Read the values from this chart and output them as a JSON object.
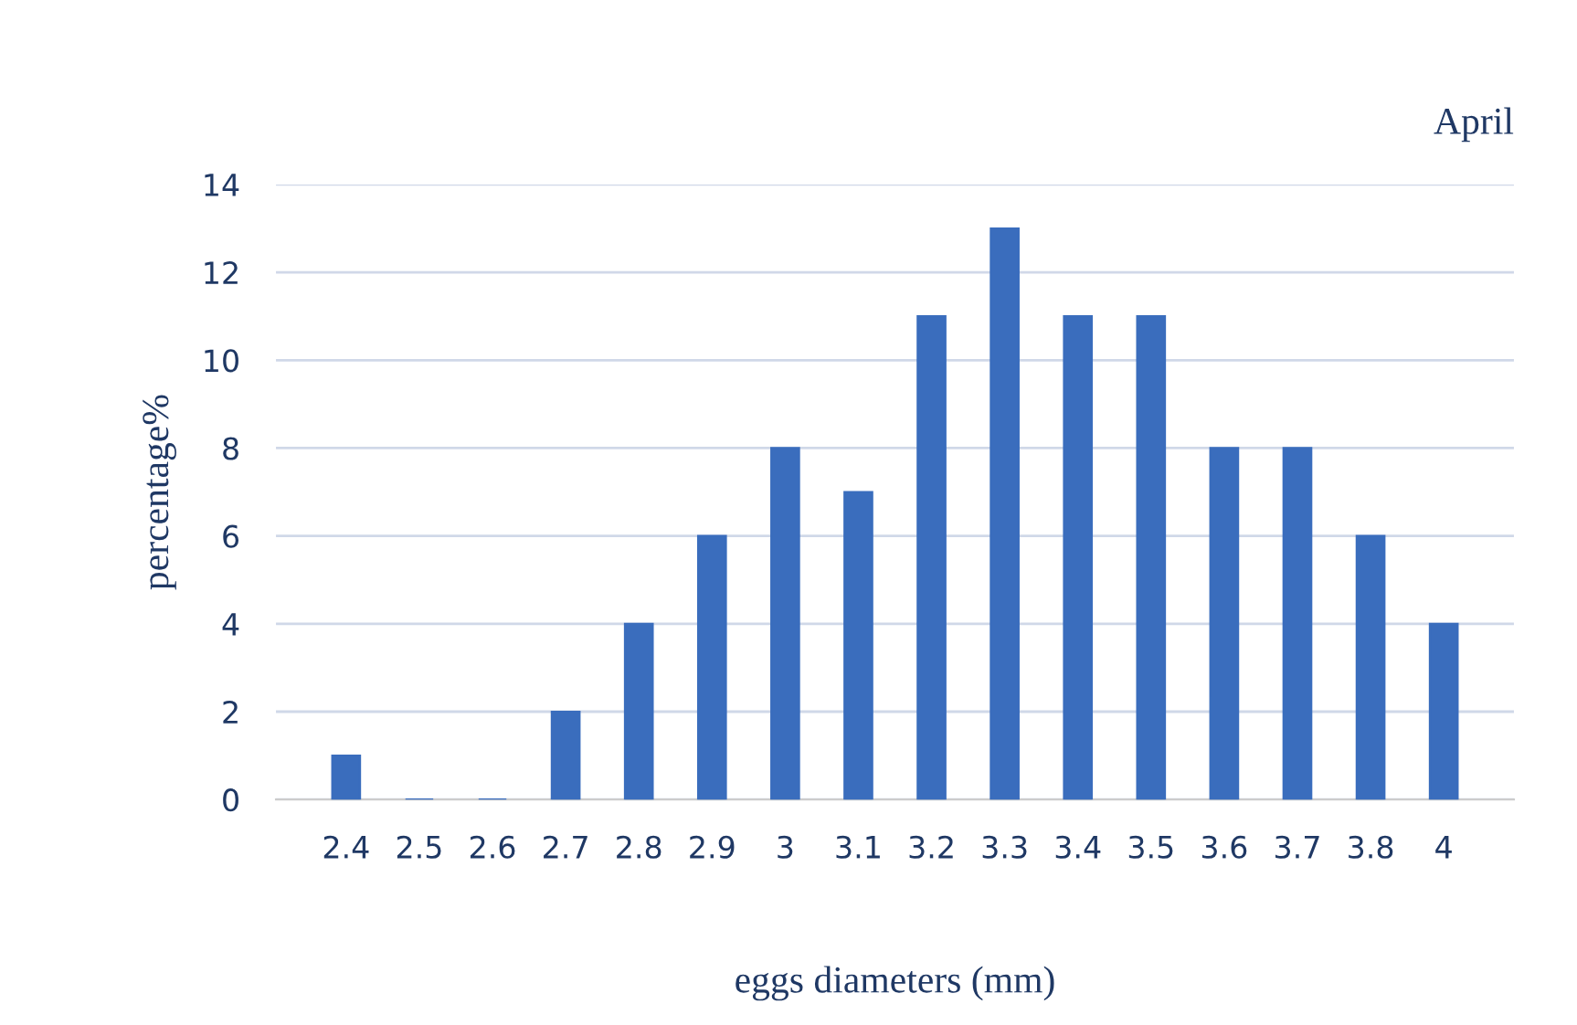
{
  "chart_data": {
    "type": "bar",
    "title": "April",
    "xlabel": "eggs diameters (mm)",
    "ylabel": "percentage%",
    "categories": [
      "2.4",
      "2.5",
      "2.6",
      "2.7",
      "2.8",
      "2.9",
      "3",
      "3.1",
      "3.2",
      "3.3",
      "3.4",
      "3.5",
      "3.6",
      "3.7",
      "3.8",
      "4"
    ],
    "values": [
      1,
      0,
      0,
      2,
      4,
      6,
      8,
      7,
      11,
      13,
      11,
      11,
      8,
      8,
      6,
      4
    ],
    "color": "#3a6dbd",
    "ylim": [
      0,
      14
    ],
    "yticks": [
      0,
      2,
      4,
      6,
      8,
      10,
      12,
      14
    ],
    "grid": "y",
    "legend": false
  }
}
